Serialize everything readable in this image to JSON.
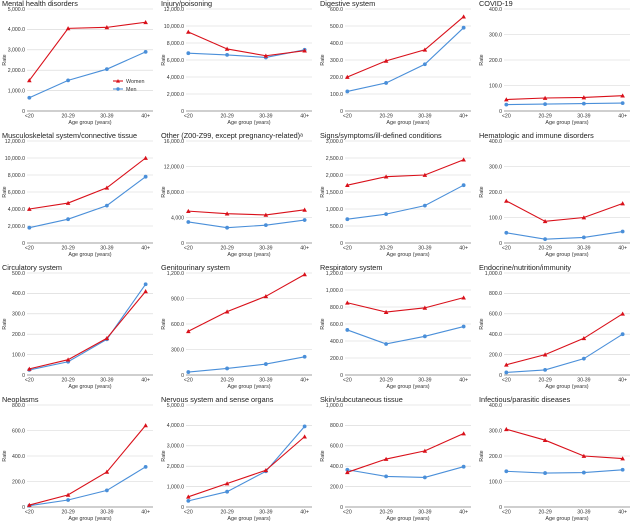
{
  "figure": {
    "legend": [
      {
        "name": "Women",
        "color": "#d9101a",
        "marker": "triangle"
      },
      {
        "name": "Men",
        "color": "#4a8fd9",
        "marker": "circle"
      }
    ]
  },
  "chart_data": [
    {
      "type": "line",
      "title": "Mental health disorders",
      "categories": [
        "<20",
        "20-29",
        "30-39",
        "40+"
      ],
      "xlabel": "Age group (years)",
      "ylabel": "Rate",
      "ylim": [
        0,
        5000
      ],
      "yticks": [
        "0",
        "1,000.0",
        "2,000.0",
        "3,000.0",
        "4,000.0",
        "5,000.0"
      ],
      "legend_shown": true,
      "series": [
        {
          "name": "Women",
          "values": [
            1500,
            4050,
            4100,
            4350
          ]
        },
        {
          "name": "Men",
          "values": [
            650,
            1500,
            2050,
            2900
          ]
        }
      ]
    },
    {
      "type": "line",
      "title": "Injury/poisoning",
      "categories": [
        "<20",
        "20-29",
        "30-39",
        "40+"
      ],
      "xlabel": "Age group (years)",
      "ylabel": "Rate",
      "ylim": [
        0,
        12000
      ],
      "yticks": [
        "0",
        "2,000.0",
        "4,000.0",
        "6,000.0",
        "8,000.0",
        "10,000.0",
        "12,000.0"
      ],
      "series": [
        {
          "name": "Women",
          "values": [
            9300,
            7300,
            6500,
            7100
          ]
        },
        {
          "name": "Men",
          "values": [
            6800,
            6600,
            6300,
            7200
          ]
        }
      ]
    },
    {
      "type": "line",
      "title": "Digestive system",
      "categories": [
        "<20",
        "20-29",
        "30-39",
        "40+"
      ],
      "xlabel": "Age group (years)",
      "ylabel": "Rate",
      "ylim": [
        0,
        600
      ],
      "yticks": [
        "0",
        "100.0",
        "200.0",
        "300.0",
        "400.0",
        "500.0",
        "600.0"
      ],
      "series": [
        {
          "name": "Women",
          "values": [
            200,
            295,
            360,
            555
          ]
        },
        {
          "name": "Men",
          "values": [
            115,
            165,
            275,
            490
          ]
        }
      ]
    },
    {
      "type": "line",
      "title": "COVID-19",
      "categories": [
        "<20",
        "20-29",
        "30-39",
        "40+"
      ],
      "xlabel": "Age group (years)",
      "ylabel": "Rate",
      "ylim": [
        0,
        400
      ],
      "yticks": [
        "0",
        "100.0",
        "200.0",
        "300.0",
        "400.0"
      ],
      "series": [
        {
          "name": "Women",
          "values": [
            45,
            51,
            53,
            60
          ]
        },
        {
          "name": "Men",
          "values": [
            25,
            27,
            29,
            31
          ]
        }
      ]
    },
    {
      "type": "line",
      "title": "Musculoskeletal system/connective tissue",
      "categories": [
        "<20",
        "20-29",
        "30-39",
        "40+"
      ],
      "xlabel": "Age group (years)",
      "ylabel": "Rate",
      "ylim": [
        0,
        12000
      ],
      "yticks": [
        "0",
        "2,000.0",
        "4,000.0",
        "6,000.0",
        "8,000.0",
        "10,000.0",
        "12,000.0"
      ],
      "series": [
        {
          "name": "Women",
          "values": [
            4000,
            4700,
            6500,
            10000
          ]
        },
        {
          "name": "Men",
          "values": [
            1800,
            2800,
            4400,
            7800
          ]
        }
      ]
    },
    {
      "type": "line",
      "title": "Other (Z00-Z99, except pregnancy-related)ᵃ",
      "categories": [
        "<20",
        "20-29",
        "30-39",
        "40+"
      ],
      "xlabel": "Age group (years)",
      "ylabel": "Rate",
      "ylim": [
        0,
        16000
      ],
      "yticks": [
        "0",
        "4,000",
        "8,000.0",
        "12,000.0",
        "16,000.0"
      ],
      "series": [
        {
          "name": "Women",
          "values": [
            5000,
            4600,
            4400,
            5200
          ]
        },
        {
          "name": "Men",
          "values": [
            3300,
            2400,
            2800,
            3600
          ]
        }
      ]
    },
    {
      "type": "line",
      "title": "Signs/symptoms/ill-defined conditions",
      "categories": [
        "<20",
        "20-29",
        "30-39",
        "40+"
      ],
      "xlabel": "Age group (years)",
      "ylabel": "Rate",
      "ylim": [
        0,
        3000
      ],
      "yticks": [
        "0",
        "500.0",
        "1,000.0",
        "1,500.0",
        "2,000.0",
        "2,500.0",
        "3,000.0"
      ],
      "series": [
        {
          "name": "Women",
          "values": [
            1700,
            1950,
            2000,
            2450
          ]
        },
        {
          "name": "Men",
          "values": [
            700,
            850,
            1100,
            1700
          ]
        }
      ]
    },
    {
      "type": "line",
      "title": "Hematologic and immune disorders",
      "categories": [
        "<20",
        "20-29",
        "30-39",
        "40+"
      ],
      "xlabel": "Age group (years)",
      "ylabel": "Rate",
      "ylim": [
        0,
        400
      ],
      "yticks": [
        "0",
        "100.0",
        "200.0",
        "300.0",
        "400.0"
      ],
      "series": [
        {
          "name": "Women",
          "values": [
            165,
            85,
            100,
            155
          ]
        },
        {
          "name": "Men",
          "values": [
            40,
            15,
            22,
            45
          ]
        }
      ]
    },
    {
      "type": "line",
      "title": "Circulatory system",
      "categories": [
        "<20",
        "20-29",
        "30-39",
        "40+"
      ],
      "xlabel": "Age group (years)",
      "ylabel": "Rate",
      "ylim": [
        0,
        500
      ],
      "yticks": [
        "0",
        "100.0",
        "200.0",
        "300.0",
        "400.0",
        "500.0"
      ],
      "series": [
        {
          "name": "Women",
          "values": [
            30,
            75,
            180,
            410
          ]
        },
        {
          "name": "Men",
          "values": [
            25,
            65,
            175,
            445
          ]
        }
      ]
    },
    {
      "type": "line",
      "title": "Genitourinary system",
      "categories": [
        "<20",
        "20-29",
        "30-39",
        "40+"
      ],
      "xlabel": "Age group (years)",
      "ylabel": "Rate",
      "ylim": [
        0,
        1400
      ],
      "yticks": [
        "0",
        "300.0",
        "600.0",
        "900.0",
        "1,200.0"
      ],
      "series": [
        {
          "name": "Women",
          "values": [
            600,
            870,
            1080,
            1380
          ]
        },
        {
          "name": "Men",
          "values": [
            40,
            90,
            150,
            250
          ]
        }
      ]
    },
    {
      "type": "line",
      "title": "Respiratory system",
      "categories": [
        "<20",
        "20-29",
        "30-39",
        "40+"
      ],
      "xlabel": "Age group (years)",
      "ylabel": "Rate",
      "ylim": [
        0,
        1200
      ],
      "yticks": [
        "0",
        "200.0",
        "400.0",
        "600.0",
        "800.0",
        "1,000.0",
        "1,200.0"
      ],
      "series": [
        {
          "name": "Women",
          "values": [
            850,
            740,
            790,
            910
          ]
        },
        {
          "name": "Men",
          "values": [
            530,
            365,
            455,
            570
          ]
        }
      ]
    },
    {
      "type": "line",
      "title": "Endocrine/nutrition/immunity",
      "categories": [
        "<20",
        "20-29",
        "30-39",
        "40+"
      ],
      "xlabel": "Age group (years)",
      "ylabel": "Rate",
      "ylim": [
        0,
        1000
      ],
      "yticks": [
        "0",
        "200.0",
        "400.0",
        "600.0",
        "800.0",
        "1,000.0"
      ],
      "series": [
        {
          "name": "Women",
          "values": [
            100,
            200,
            360,
            600
          ]
        },
        {
          "name": "Men",
          "values": [
            25,
            50,
            160,
            400
          ]
        }
      ]
    },
    {
      "type": "line",
      "title": "Neoplasms",
      "categories": [
        "<20",
        "20-29",
        "30-39",
        "40+"
      ],
      "xlabel": "Age group (years)",
      "ylabel": "Rate",
      "ylim": [
        0,
        800
      ],
      "yticks": [
        "0",
        "200.0",
        "400.0",
        "600.0",
        "800.0"
      ],
      "series": [
        {
          "name": "Women",
          "values": [
            15,
            95,
            275,
            640
          ]
        },
        {
          "name": "Men",
          "values": [
            10,
            55,
            130,
            315
          ]
        }
      ]
    },
    {
      "type": "line",
      "title": "Nervous system and sense organs",
      "categories": [
        "<20",
        "20-29",
        "30-39",
        "40+"
      ],
      "xlabel": "Age group (years)",
      "ylabel": "Rate",
      "ylim": [
        0,
        5000
      ],
      "yticks": [
        "0",
        "1,000.0",
        "2,000.0",
        "3,000.0",
        "4,000.0",
        "5,000.0"
      ],
      "series": [
        {
          "name": "Women",
          "values": [
            500,
            1150,
            1800,
            3450
          ]
        },
        {
          "name": "Men",
          "values": [
            300,
            750,
            1750,
            3950
          ]
        }
      ]
    },
    {
      "type": "line",
      "title": "Skin/subcutaneous tissue",
      "categories": [
        "<20",
        "20-29",
        "30-39",
        "40+"
      ],
      "xlabel": "Age group (years)",
      "ylabel": "Rate",
      "ylim": [
        0,
        1000
      ],
      "yticks": [
        "0",
        "200.0",
        "400.0",
        "600.0",
        "800.0",
        "1,000.0"
      ],
      "series": [
        {
          "name": "Women",
          "values": [
            340,
            470,
            550,
            720
          ]
        },
        {
          "name": "Men",
          "values": [
            365,
            300,
            290,
            395
          ]
        }
      ]
    },
    {
      "type": "line",
      "title": "Infectious/parasitic diseases",
      "categories": [
        "<20",
        "20-29",
        "30-39",
        "40+"
      ],
      "xlabel": "Age group (years)",
      "ylabel": "Rate",
      "ylim": [
        0,
        400
      ],
      "yticks": [
        "0",
        "100.0",
        "200.0",
        "300.0",
        "400.0"
      ],
      "series": [
        {
          "name": "Women",
          "values": [
            305,
            262,
            200,
            190
          ]
        },
        {
          "name": "Men",
          "values": [
            140,
            133,
            135,
            146
          ]
        }
      ]
    }
  ]
}
